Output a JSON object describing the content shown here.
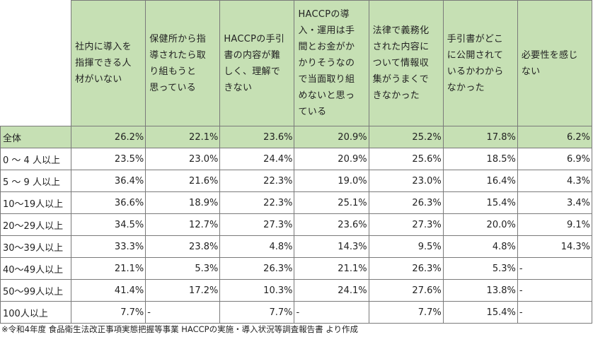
{
  "headers": [
    "社内に導入を\n指揮できる人\n材がいない",
    "保健所から指\n導されたら取\nり組もうと\n思っている",
    "HACCPの手引\n書の内容が難\nしく、理解で\nきない",
    "HACCPの導\n入・運用は手\n間とお金がか\nかりそうなの\nで当面取り組\nめないと思っ\nている",
    "法律で義務化\nされた内容に\nついて情報収\n集がうまくで\nきなかった",
    "手引書がどこ\nに公開されて\nいるかわから\nなかった",
    "必要性を感じ\nない"
  ],
  "rows": [
    {
      "label": "全体",
      "values": [
        "26.2%",
        "22.1%",
        "23.6%",
        "20.9%",
        "25.2%",
        "17.8%",
        "6.2%"
      ]
    },
    {
      "label": " 0 ～ 4 人以上",
      "values": [
        "23.5%",
        "23.0%",
        "24.4%",
        "20.9%",
        "25.6%",
        "18.5%",
        "6.9%"
      ]
    },
    {
      "label": " 5 ～ 9 人以上",
      "values": [
        "36.4%",
        "21.6%",
        "22.3%",
        "19.0%",
        "23.0%",
        "16.4%",
        "4.3%"
      ]
    },
    {
      "label": "10～19人以上",
      "values": [
        "36.6%",
        "18.9%",
        "22.3%",
        "25.1%",
        "26.3%",
        "15.4%",
        "3.4%"
      ]
    },
    {
      "label": "20～29人以上",
      "values": [
        "34.5%",
        "12.7%",
        "27.3%",
        "23.6%",
        "27.3%",
        "20.0%",
        "9.1%"
      ]
    },
    {
      "label": "30～39人以上",
      "values": [
        "33.3%",
        "23.8%",
        "4.8%",
        "14.3%",
        "9.5%",
        "4.8%",
        "14.3%"
      ]
    },
    {
      "label": "40～49人以上",
      "values": [
        "21.1%",
        "5.3%",
        "26.3%",
        "21.1%",
        "26.3%",
        "5.3%",
        "-"
      ]
    },
    {
      "label": "50～99人以上",
      "values": [
        "41.4%",
        "17.2%",
        "10.3%",
        "24.1%",
        "27.6%",
        "13.8%",
        "-"
      ]
    },
    {
      "label": "100人以上",
      "values": [
        "7.7%",
        "-",
        "7.7%",
        "-",
        "7.7%",
        "15.4%",
        "-"
      ]
    }
  ],
  "footnote": "※令和4年度 食品衛生法改正事項実態把握等事業 HACCPの実施・導入状況等調査報告書 より作成",
  "colors": {
    "header_bg": "#c6e0b4",
    "total_row_bg": "#c6e0b4",
    "border": "#7a7a7a"
  }
}
